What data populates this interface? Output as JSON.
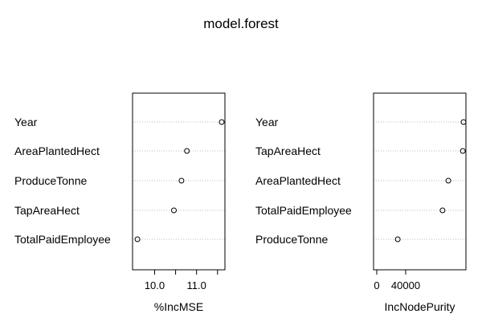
{
  "chart_data": {
    "title": "model.forest",
    "panels": [
      {
        "type": "scatter",
        "xlabel": "%IncMSE",
        "xlim": [
          9.55,
          11.6
        ],
        "ticks": [
          10.0,
          10.5,
          11.0,
          11.5
        ],
        "tick_labels": [
          "10.0",
          "",
          "11.0",
          ""
        ],
        "grid": "dotted horizontal",
        "categories": [
          "Year",
          "AreaPlantedHect",
          "ProduceTonne",
          "TapAreaHect",
          "TotalPaidEmployee"
        ],
        "values": [
          11.6,
          10.77,
          10.64,
          10.46,
          9.59
        ]
      },
      {
        "type": "scatter",
        "xlabel": "IncNodePurity",
        "xlim": [
          0,
          120000
        ],
        "ticks": [
          0,
          40000
        ],
        "tick_labels": [
          "0",
          "40000"
        ],
        "grid": "dotted horizontal",
        "categories": [
          "Year",
          "TapAreaHect",
          "AreaPlantedHect",
          "TotalPaidEmployee",
          "ProduceTonne"
        ],
        "values": [
          120000,
          119000,
          99000,
          91000,
          29000
        ]
      }
    ]
  }
}
